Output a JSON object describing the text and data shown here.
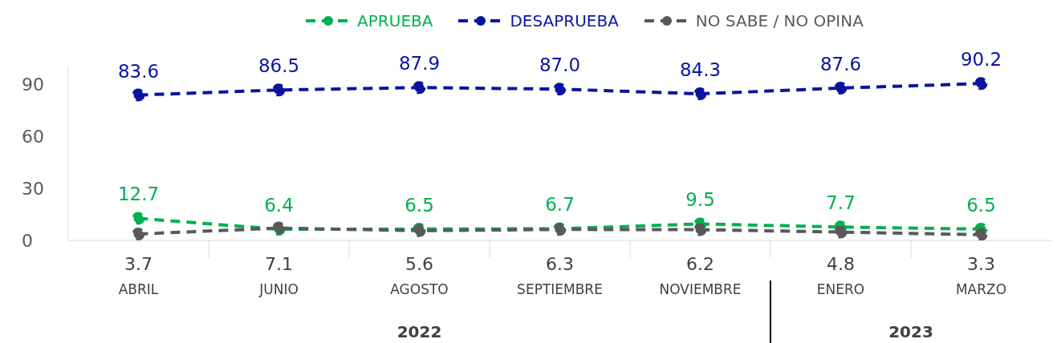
{
  "chart_data": {
    "type": "line",
    "categories": [
      "ABRIL",
      "JUNIO",
      "AGOSTO",
      "SEPTIEMBRE",
      "NOVIEMBRE",
      "ENERO",
      "MARZO"
    ],
    "series": [
      {
        "name": "APRUEBA",
        "color": "#00b050",
        "values": [
          12.7,
          6.4,
          6.5,
          6.7,
          9.5,
          7.7,
          6.5
        ],
        "value_labels": [
          "12.7",
          "6.4",
          "6.5",
          "6.7",
          "9.5",
          "7.7",
          "6.5"
        ]
      },
      {
        "name": "DESAPRUEBA",
        "color": "#0a14a0",
        "values": [
          83.6,
          86.5,
          87.9,
          87.0,
          84.3,
          87.6,
          90.2
        ],
        "value_labels": [
          "83.6",
          "86.5",
          "87.9",
          "87.0",
          "84.3",
          "87.6",
          "90.2"
        ]
      },
      {
        "name": "NO SABE / NO OPINA",
        "color": "#595959",
        "values": [
          3.7,
          7.1,
          5.6,
          6.3,
          6.2,
          4.8,
          3.3
        ],
        "value_labels": [
          "3.7",
          "7.1",
          "5.6",
          "6.3",
          "6.2",
          "4.8",
          "3.3"
        ]
      }
    ],
    "ylim": [
      0,
      100
    ],
    "yticks": [
      0,
      30,
      60,
      90
    ],
    "legend": "top",
    "marker": "circle",
    "line_style": "dashed",
    "annotations": [
      "2022",
      "2023"
    ]
  }
}
